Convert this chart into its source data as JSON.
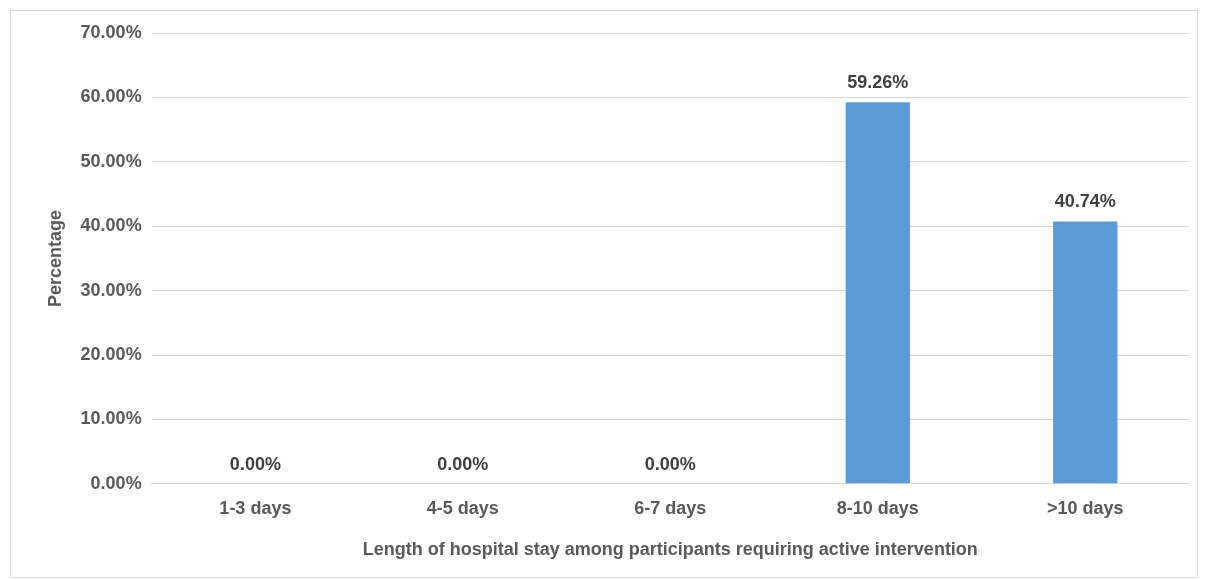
{
  "chart_data": {
    "type": "bar",
    "xlabel": "Length of hospital stay among participants requiring active intervention",
    "ylabel": "Percentage",
    "categories": [
      "1-3 days",
      "4-5 days",
      "6-7 days",
      "8-10 days",
      ">10 days"
    ],
    "values": [
      0,
      0,
      0,
      59.26,
      40.74
    ],
    "color": "#5b9bd5",
    "value_labels": [
      "0.00%",
      "0.00%",
      "0.00%",
      "59.26%",
      "40.74%"
    ],
    "ylim": [
      0,
      70
    ],
    "yticks": [
      {
        "value": 0,
        "label": "0.00%"
      },
      {
        "value": 10,
        "label": "10.00%"
      },
      {
        "value": 20,
        "label": "20.00%"
      },
      {
        "value": 30,
        "label": "30.00%"
      },
      {
        "value": 40,
        "label": "40.00%"
      },
      {
        "value": 50,
        "label": "50.00%"
      },
      {
        "value": 60,
        "label": "60.00%"
      },
      {
        "value": 70,
        "label": "70.00%"
      }
    ],
    "grid": "y"
  }
}
